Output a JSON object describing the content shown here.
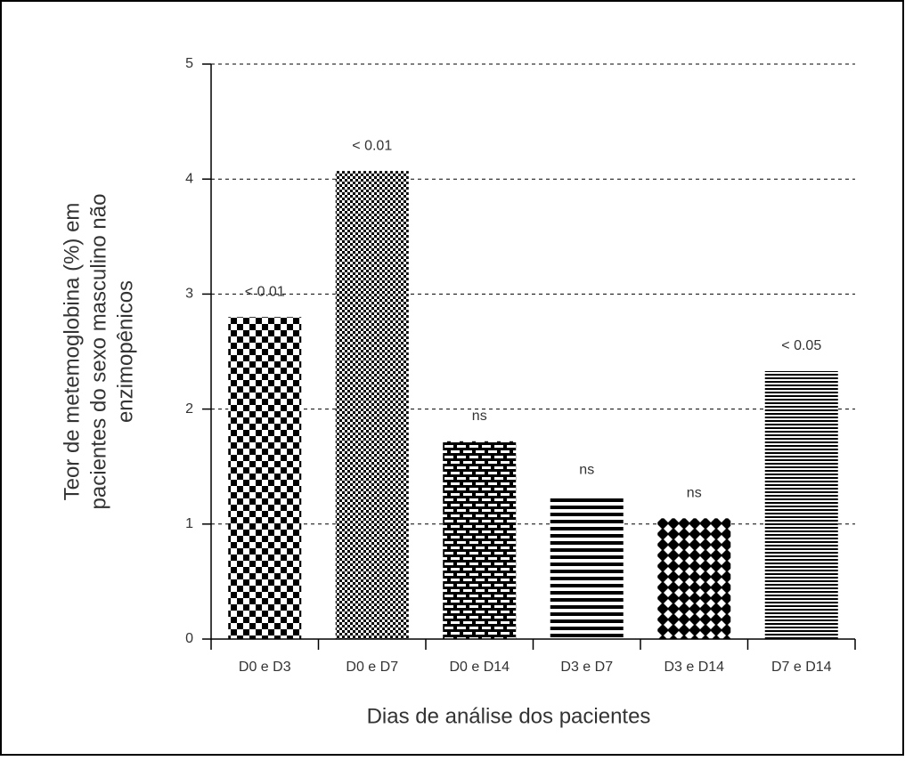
{
  "chart_data": {
    "type": "bar",
    "categories": [
      "D0 e D3",
      "D0 e D7",
      "D0 e D14",
      "D3 e D7",
      "D3 e D14",
      "D7 e D14"
    ],
    "values": [
      2.8,
      4.07,
      1.72,
      1.25,
      1.05,
      2.33
    ],
    "annotations": [
      "< 0.01",
      "< 0.01",
      "ns",
      "ns",
      "ns",
      "< 0.05"
    ],
    "xlabel": "Dias de análise dos pacientes",
    "ylabel": [
      "Teor de metemoglobina (%) em",
      "pacientes do sexo masculino não",
      "enzimopênicos"
    ],
    "ylim": [
      0,
      5
    ],
    "yticks": [
      0,
      1,
      2,
      3,
      4,
      5
    ],
    "grid": true,
    "color": "#000000"
  }
}
